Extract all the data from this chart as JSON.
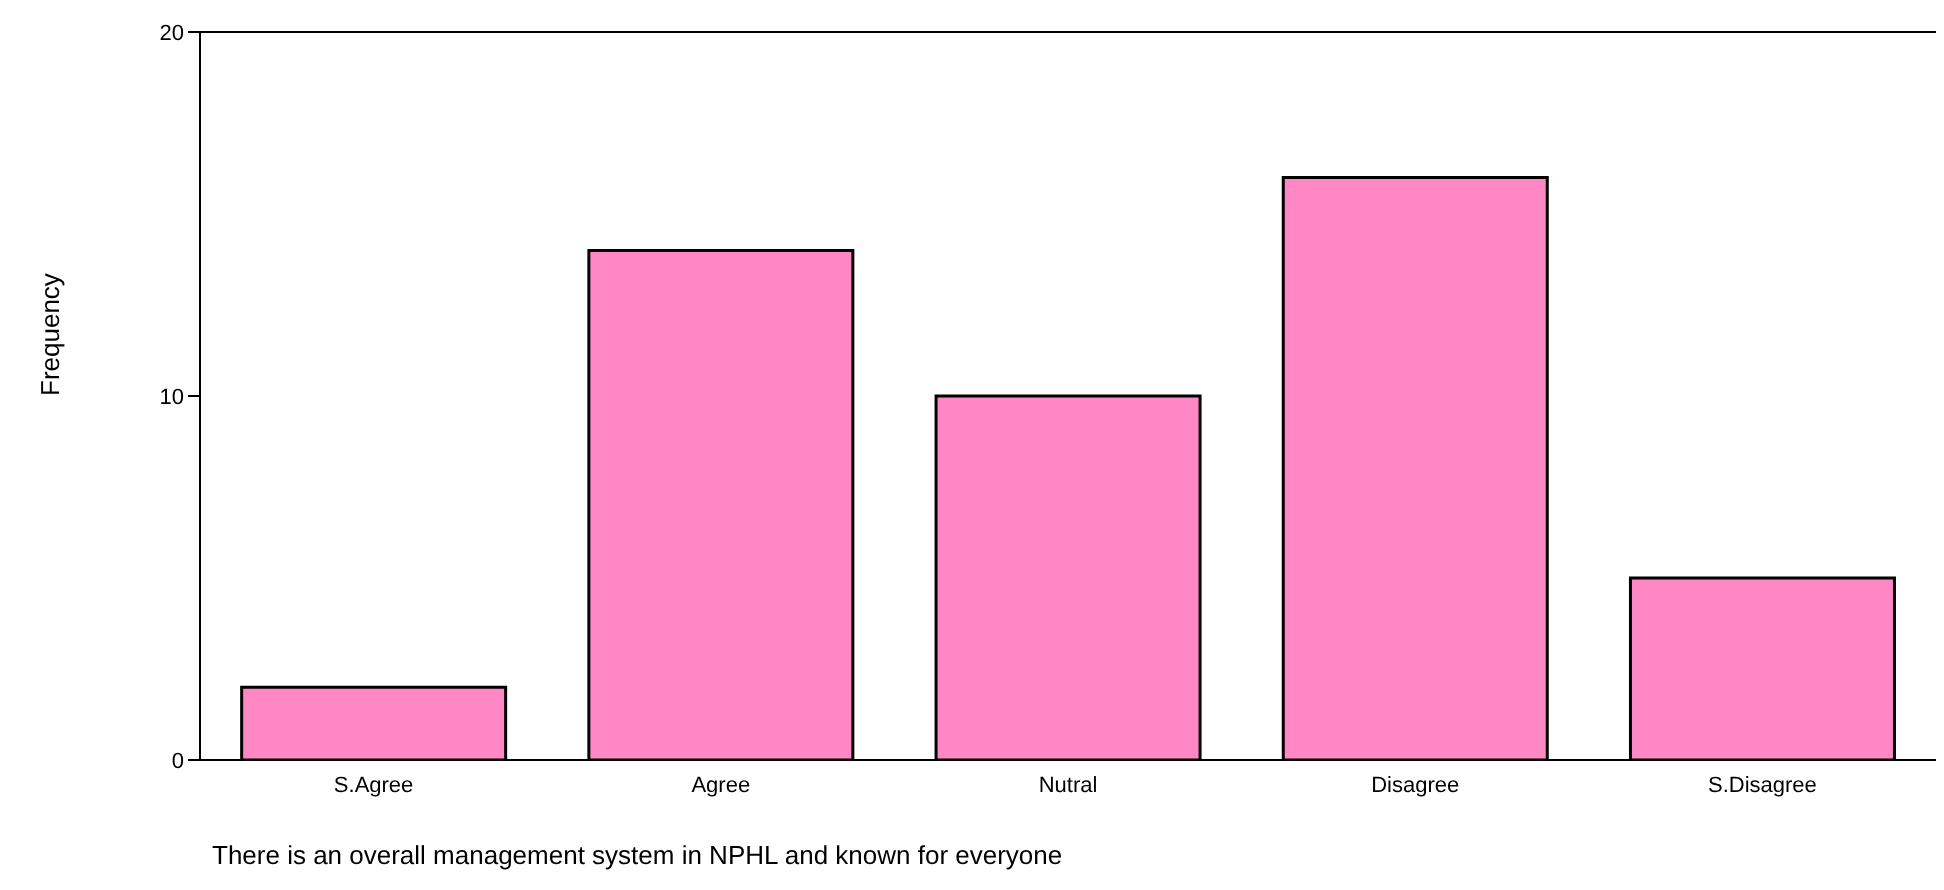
{
  "chart_data": {
    "type": "bar",
    "categories": [
      "S.Agree",
      "Agree",
      "Nutral",
      "Disagree",
      "S.Disagree"
    ],
    "values": [
      2,
      14,
      10,
      16,
      5
    ],
    "color": "#ff88c4",
    "ylim": [
      0,
      20
    ],
    "yticks": [
      0,
      10,
      20
    ],
    "grid": false,
    "ylabel": "Frequency",
    "xlabel": "There is an overall  management system in NPHL  and known for everyone"
  }
}
